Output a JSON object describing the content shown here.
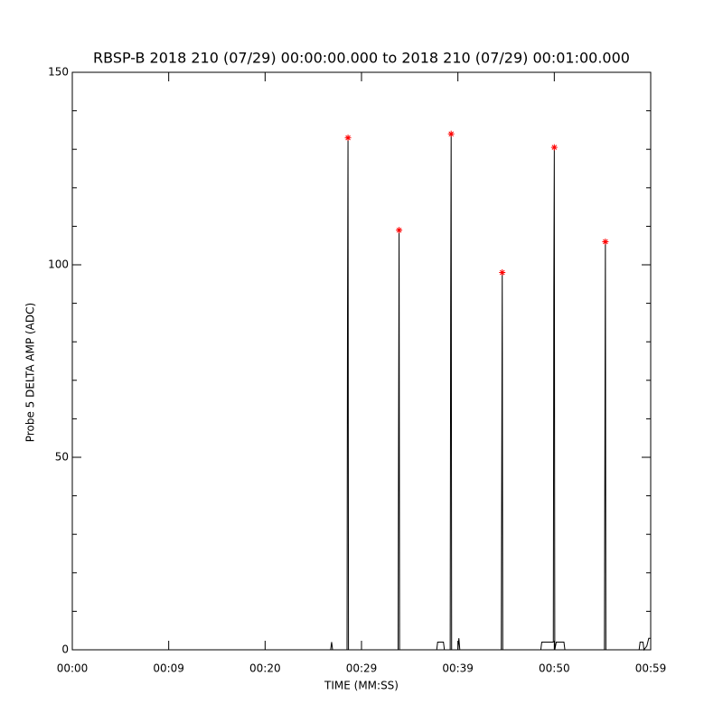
{
  "chart_data": {
    "type": "line",
    "title": "RBSP-B 2018 210 (07/29) 00:00:00.000 to 2018 210 (07/29) 00:01:00.000",
    "x_label": "TIME (MM:SS)",
    "y_label": "Probe 5 DELTA AMP (ADC)",
    "xlim": [
      0,
      60
    ],
    "ylim": [
      0,
      150
    ],
    "xticks": [
      {
        "value": 0,
        "label": "00:00"
      },
      {
        "value": 10,
        "label": "00:09"
      },
      {
        "value": 20,
        "label": "00:20"
      },
      {
        "value": 30,
        "label": "00:29"
      },
      {
        "value": 40,
        "label": "00:39"
      },
      {
        "value": 50,
        "label": "00:50"
      },
      {
        "value": 60,
        "label": "00:59"
      }
    ],
    "yticks": [
      0,
      50,
      100,
      150
    ],
    "yminorticks": [
      10,
      20,
      30,
      40,
      60,
      70,
      80,
      90,
      110,
      120,
      130,
      140
    ],
    "series": [
      {
        "color": "#000000",
        "mode": "line",
        "x": [
          0,
          26.8,
          26.9,
          27.0,
          28.5,
          28.55,
          28.6,
          28.65,
          33.8,
          33.85,
          33.9,
          33.95,
          37.8,
          37.9,
          38.5,
          38.6,
          39.2,
          39.25,
          39.3,
          39.35,
          40.0,
          40.1,
          40.2,
          44.5,
          44.55,
          44.6,
          44.65,
          48.6,
          48.7,
          49.9,
          49.95,
          50.0,
          50.05,
          50.2,
          51.0,
          51.1,
          55.2,
          55.25,
          55.3,
          55.35,
          58.8,
          58.9,
          59.2,
          59.3,
          59.6,
          59.8,
          60
        ],
        "values": [
          0,
          0,
          2,
          0,
          0,
          88,
          133,
          0,
          0,
          57,
          109,
          0,
          0,
          2,
          2,
          0,
          0,
          88,
          134,
          0,
          0,
          3,
          0,
          0,
          49,
          98,
          0,
          0,
          2,
          2,
          93,
          130,
          0,
          2,
          2,
          0,
          0,
          55,
          106,
          0,
          0,
          2,
          2,
          0,
          1,
          3,
          3
        ]
      },
      {
        "color": "#ff0000",
        "mode": "markers",
        "x": [
          28.6,
          33.9,
          39.3,
          44.6,
          50.0,
          55.3
        ],
        "values": [
          133,
          109,
          134,
          98,
          130.5,
          106
        ]
      }
    ]
  }
}
